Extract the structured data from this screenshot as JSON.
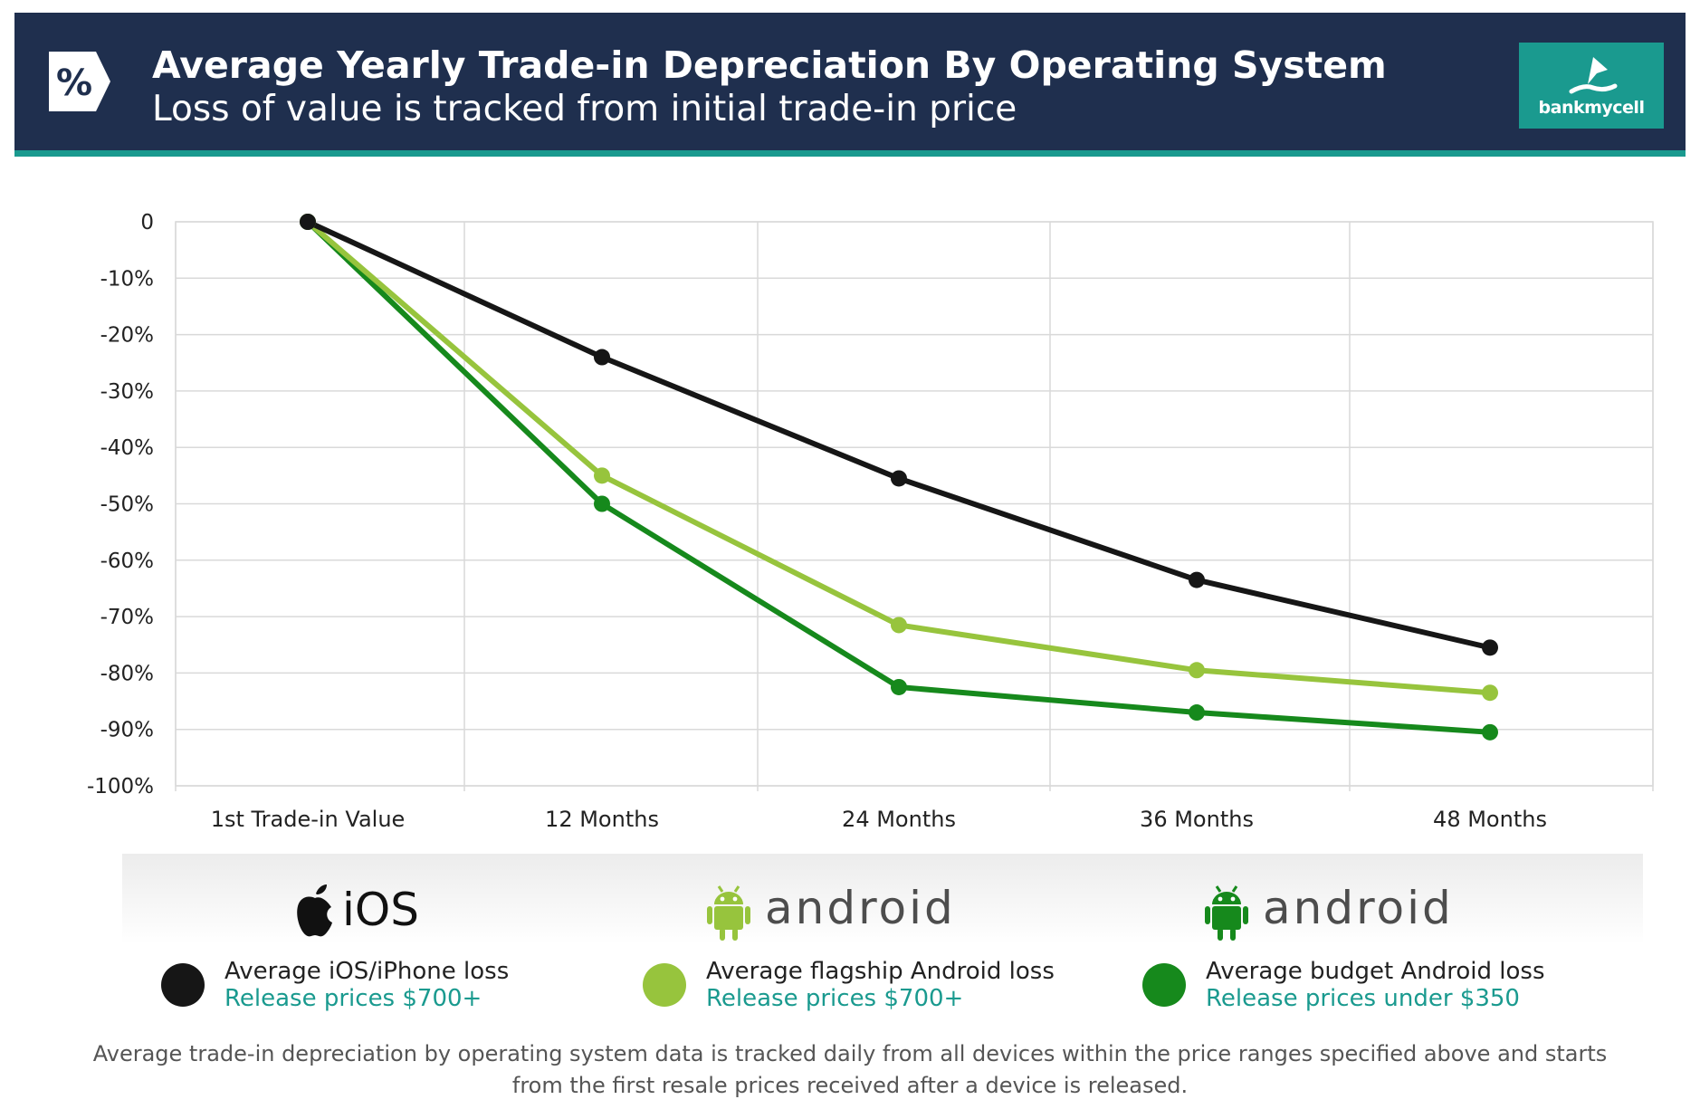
{
  "header": {
    "title": "Average Yearly Trade-in Depreciation By Operating System",
    "subtitle": "Loss of value is tracked from initial trade-in price",
    "icon": "percent-tag-icon",
    "brand": "bankmycell",
    "colors": {
      "background": "#1f2f4e",
      "accent": "#1a9a8f"
    }
  },
  "chart_data": {
    "type": "line",
    "categories": [
      "1st Trade-in Value",
      "12 Months",
      "24 Months",
      "36 Months",
      "48 Months"
    ],
    "yticks": [
      "0",
      "-10%",
      "-20%",
      "-30%",
      "-40%",
      "-50%",
      "-60%",
      "-70%",
      "-80%",
      "-90%",
      "-100%"
    ],
    "ylim": [
      -100,
      0
    ],
    "grid": true,
    "series": [
      {
        "name": "Average iOS/iPhone loss",
        "color": "#161616",
        "values": [
          0,
          -24,
          -45.5,
          -63.5,
          -75.5
        ]
      },
      {
        "name": "Average flagship Android loss",
        "color": "#97c43d",
        "values": [
          0,
          -45,
          -71.5,
          -79.5,
          -83.5
        ]
      },
      {
        "name": "Average budget Android loss",
        "color": "#16891c",
        "values": [
          0,
          -50,
          -82.5,
          -87,
          -90.5
        ]
      }
    ]
  },
  "legend": {
    "groups": [
      {
        "os": "iOS",
        "logo": "apple-logo-icon",
        "label": "Average iOS/iPhone loss",
        "sub": "Release prices $700+",
        "color": "#161616"
      },
      {
        "os": "android",
        "logo": "android-robot-icon",
        "label": "Average flagship Android loss",
        "sub": "Release prices $700+",
        "color": "#97c43d"
      },
      {
        "os": "android",
        "logo": "android-robot-icon",
        "label": "Average budget Android loss",
        "sub": "Release prices under $350",
        "color": "#16891c"
      }
    ]
  },
  "footnote": "Average trade-in depreciation by operating system data is tracked daily from all devices within the price ranges specified above and starts from the first resale prices received after a device is released."
}
